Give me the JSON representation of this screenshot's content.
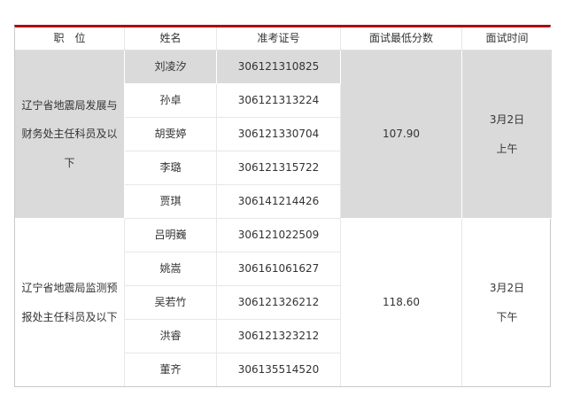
{
  "colors": {
    "accent_red": "#b00000",
    "shade_gray": "#dadada",
    "text": "#333333",
    "border_light": "#e7e7e7",
    "border_outer": "#c9c9c9"
  },
  "table": {
    "headers": [
      {
        "label": "职　位"
      },
      {
        "label": "姓名"
      },
      {
        "label": "准考证号"
      },
      {
        "label": "面试最低分数"
      },
      {
        "label": "面试时间"
      }
    ],
    "groups": [
      {
        "position": "辽宁省地震局发展与财务处主任科员及以下",
        "min_score": "107.90",
        "time_line1": "3月2日",
        "time_line2": "上午",
        "rows": [
          {
            "name": "刘凌汐",
            "exam_id": "306121310825"
          },
          {
            "name": "孙卓",
            "exam_id": "306121313224"
          },
          {
            "name": "胡雯婷",
            "exam_id": "306121330704"
          },
          {
            "name": "李璐",
            "exam_id": "306121315722"
          },
          {
            "name": "贾琪",
            "exam_id": "306141214426"
          }
        ]
      },
      {
        "position": "辽宁省地震局监测预报处主任科员及以下",
        "min_score": "118.60",
        "time_line1": "3月2日",
        "time_line2": "下午",
        "rows": [
          {
            "name": "吕明巍",
            "exam_id": "306121022509"
          },
          {
            "name": "姚嵩",
            "exam_id": "306161061627"
          },
          {
            "name": "吴若竹",
            "exam_id": "306121326212"
          },
          {
            "name": "洪睿",
            "exam_id": "306121323212"
          },
          {
            "name": "董齐",
            "exam_id": "306135514520"
          }
        ]
      }
    ]
  }
}
